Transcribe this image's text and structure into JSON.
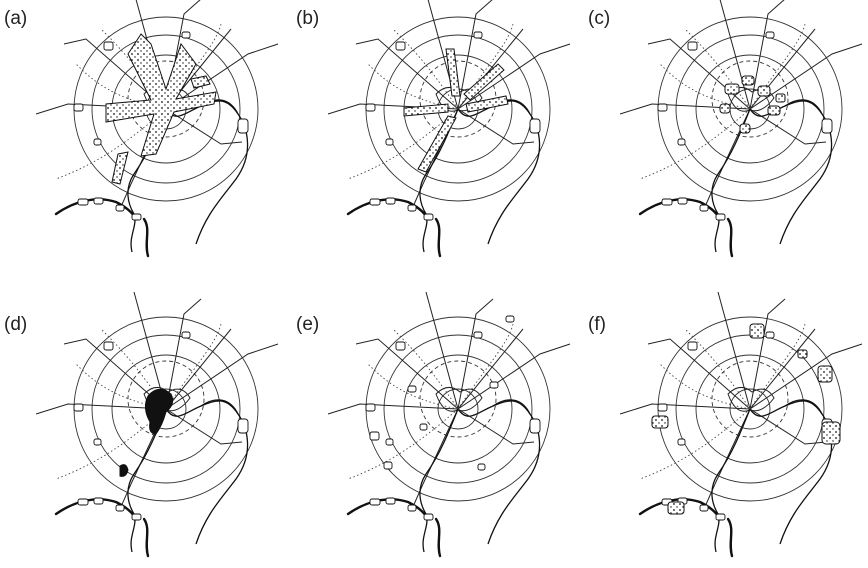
{
  "figure": {
    "panels": [
      {
        "id": "a",
        "label": "(a)",
        "pattern": "linear-belts",
        "belt": "cross"
      },
      {
        "id": "b",
        "label": "(b)",
        "pattern": "corridor-towns",
        "belt": "thin-cross"
      },
      {
        "id": "c",
        "label": "(c)",
        "pattern": "inner-cluster",
        "belt": "none"
      },
      {
        "id": "d",
        "label": "(d)",
        "pattern": "dense-core",
        "belt": "core"
      },
      {
        "id": "e",
        "label": "(e)",
        "pattern": "scattered-small",
        "belt": "none"
      },
      {
        "id": "f",
        "label": "(f)",
        "pattern": "outer-satellites",
        "belt": "none"
      }
    ],
    "colors": {
      "ink": "#111111",
      "background": "#ffffff"
    }
  }
}
